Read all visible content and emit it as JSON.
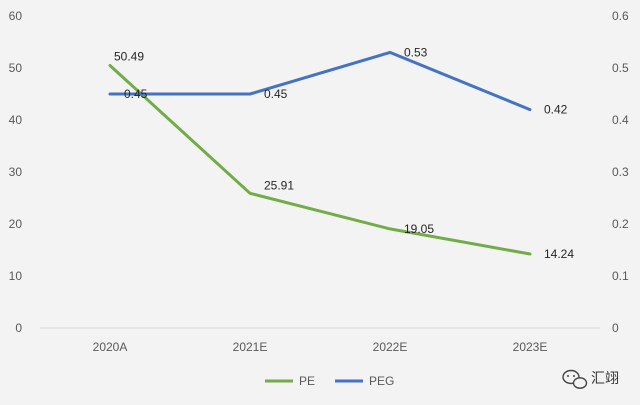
{
  "chart_data": {
    "type": "line",
    "title": "",
    "xlabel": "",
    "ylabel": "",
    "categories": [
      "2020A",
      "2021E",
      "2022E",
      "2023E"
    ],
    "series": [
      {
        "name": "PE",
        "axis": "left",
        "values": [
          50.49,
          25.91,
          19.05,
          14.24
        ],
        "labels": [
          "50.49",
          "25.91",
          "19.05",
          "14.24"
        ],
        "color": "#70ad47"
      },
      {
        "name": "PEG",
        "axis": "right",
        "values": [
          0.45,
          0.45,
          0.53,
          0.42
        ],
        "labels": [
          "0.45",
          "0.45",
          "0.53",
          "0.42"
        ],
        "color": "#4472c4"
      }
    ],
    "y_left": {
      "min": 0,
      "max": 60,
      "ticks": [
        "0",
        "10",
        "20",
        "30",
        "40",
        "50",
        "60"
      ]
    },
    "y_right": {
      "min": 0,
      "max": 0.6,
      "ticks": [
        "0",
        "0.1",
        "0.2",
        "0.3",
        "0.4",
        "0.5",
        "0.6"
      ]
    },
    "grid": false,
    "legend": "bottom"
  },
  "watermark": {
    "text": "汇翊",
    "icon": "wechat-icon"
  }
}
